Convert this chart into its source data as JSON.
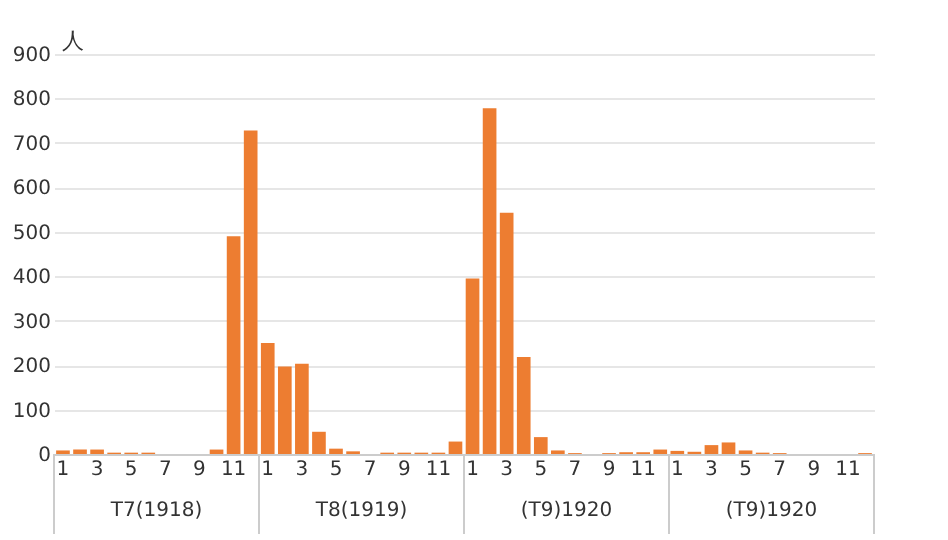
{
  "chart_data": {
    "type": "bar",
    "ylabel": "人",
    "categories": [
      "1",
      null,
      "3",
      null,
      "5",
      null,
      "7",
      null,
      "9",
      null,
      "11",
      null,
      "1",
      null,
      "3",
      null,
      "5",
      null,
      "7",
      null,
      "9",
      null,
      "11",
      null,
      "1",
      null,
      "3",
      null,
      "5",
      null,
      "7",
      null,
      "9",
      null,
      "11",
      null,
      "1",
      null,
      "3",
      null,
      "5",
      null,
      "7",
      null,
      "9",
      null,
      "11",
      null
    ],
    "values": [
      8,
      10,
      10,
      3,
      3,
      3,
      0,
      0,
      0,
      10,
      490,
      728,
      250,
      197,
      203,
      50,
      12,
      6,
      0,
      3,
      3,
      3,
      3,
      28,
      395,
      778,
      543,
      218,
      38,
      8,
      2,
      0,
      2,
      4,
      4,
      10,
      7,
      5,
      20,
      26,
      8,
      3,
      2,
      0,
      0,
      0,
      0,
      2
    ],
    "color": "#ed7d31",
    "ylim": [
      0,
      900
    ],
    "yticks": [
      0,
      100,
      200,
      300,
      400,
      500,
      600,
      700,
      800,
      900
    ],
    "grid": "y",
    "annotations": [
      "T7(1918)",
      "T8(1919)",
      "(T9)1920",
      "(T9)1920"
    ]
  }
}
